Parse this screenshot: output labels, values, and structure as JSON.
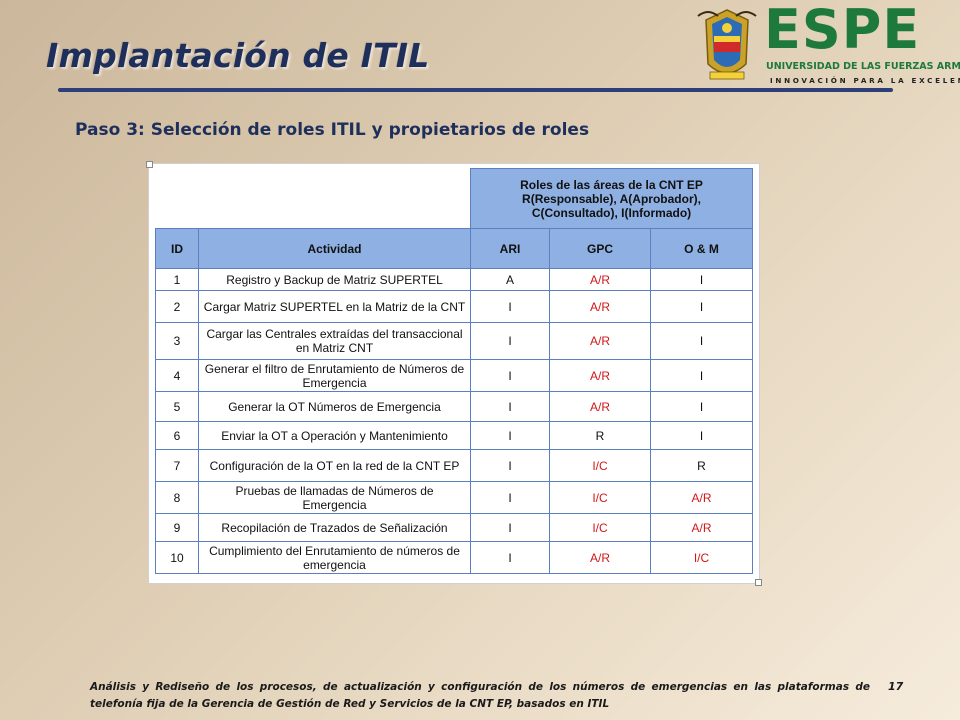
{
  "slide": {
    "title": "Implantación de ITIL",
    "subtitle": "Paso 3: Selección de roles ITIL y propietarios de roles",
    "page_number": "17",
    "footer": "Análisis y Rediseño de los procesos, de actualización y configuración de los números de emergencias en las plataformas de telefonía fija de la Gerencia de Gestión de Red y Servicios de la CNT EP, basados en ITIL"
  },
  "logo": {
    "brand": "ESPE",
    "university": "UNIVERSIDAD DE LAS FUERZAS ARMADAS",
    "tagline": "INNOVACIÓN PARA LA EXCELENCIA",
    "brand_color": "#1e7a3c"
  },
  "table": {
    "group_header": [
      "Roles de las áreas de la CNT EP",
      "R(Responsable),  A(Aprobador),",
      "C(Consultado),  I(Informado)"
    ],
    "headers": [
      "ID",
      "Actividad",
      "ARI",
      "GPC",
      "O & M"
    ],
    "header_color": "#8eb0e3",
    "highlight_color": "#d01818",
    "rows": [
      {
        "id": "1",
        "activity": "Registro y Backup de Matriz SUPERTEL",
        "ari": "A",
        "gpc": "A/R",
        "om": "I"
      },
      {
        "id": "2",
        "activity": "Cargar Matriz SUPERTEL  en la Matriz de la CNT",
        "ari": "I",
        "gpc": "A/R",
        "om": "I"
      },
      {
        "id": "3",
        "activity": "Cargar las Centrales  extraídas del transaccional en Matriz CNT",
        "ari": "I",
        "gpc": "A/R",
        "om": "I"
      },
      {
        "id": "4",
        "activity": "Generar  el filtro de Enrutamiento de Números de Emergencia",
        "ari": "I",
        "gpc": "A/R",
        "om": "I"
      },
      {
        "id": "5",
        "activity": "Generar  la OT Números de Emergencia",
        "ari": "I",
        "gpc": "A/R",
        "om": "I"
      },
      {
        "id": "6",
        "activity": "Enviar la OT a Operación y Mantenimiento",
        "ari": "I",
        "gpc": "R",
        "om": "I"
      },
      {
        "id": "7",
        "activity": "Configuración de la OT en la red de la CNT EP",
        "ari": "I",
        "gpc": "I/C",
        "om": "R"
      },
      {
        "id": "8",
        "activity": "Pruebas de llamadas de Números de Emergencia",
        "ari": "I",
        "gpc": "I/C",
        "om": "A/R"
      },
      {
        "id": "9",
        "activity": "Recopilación de Trazados de Señalización",
        "ari": "I",
        "gpc": "I/C",
        "om": "A/R"
      },
      {
        "id": "10",
        "activity": "Cumplimiento del Enrutamiento de números de emergencia",
        "ari": "I",
        "gpc": "A/R",
        "om": "I/C"
      }
    ]
  }
}
